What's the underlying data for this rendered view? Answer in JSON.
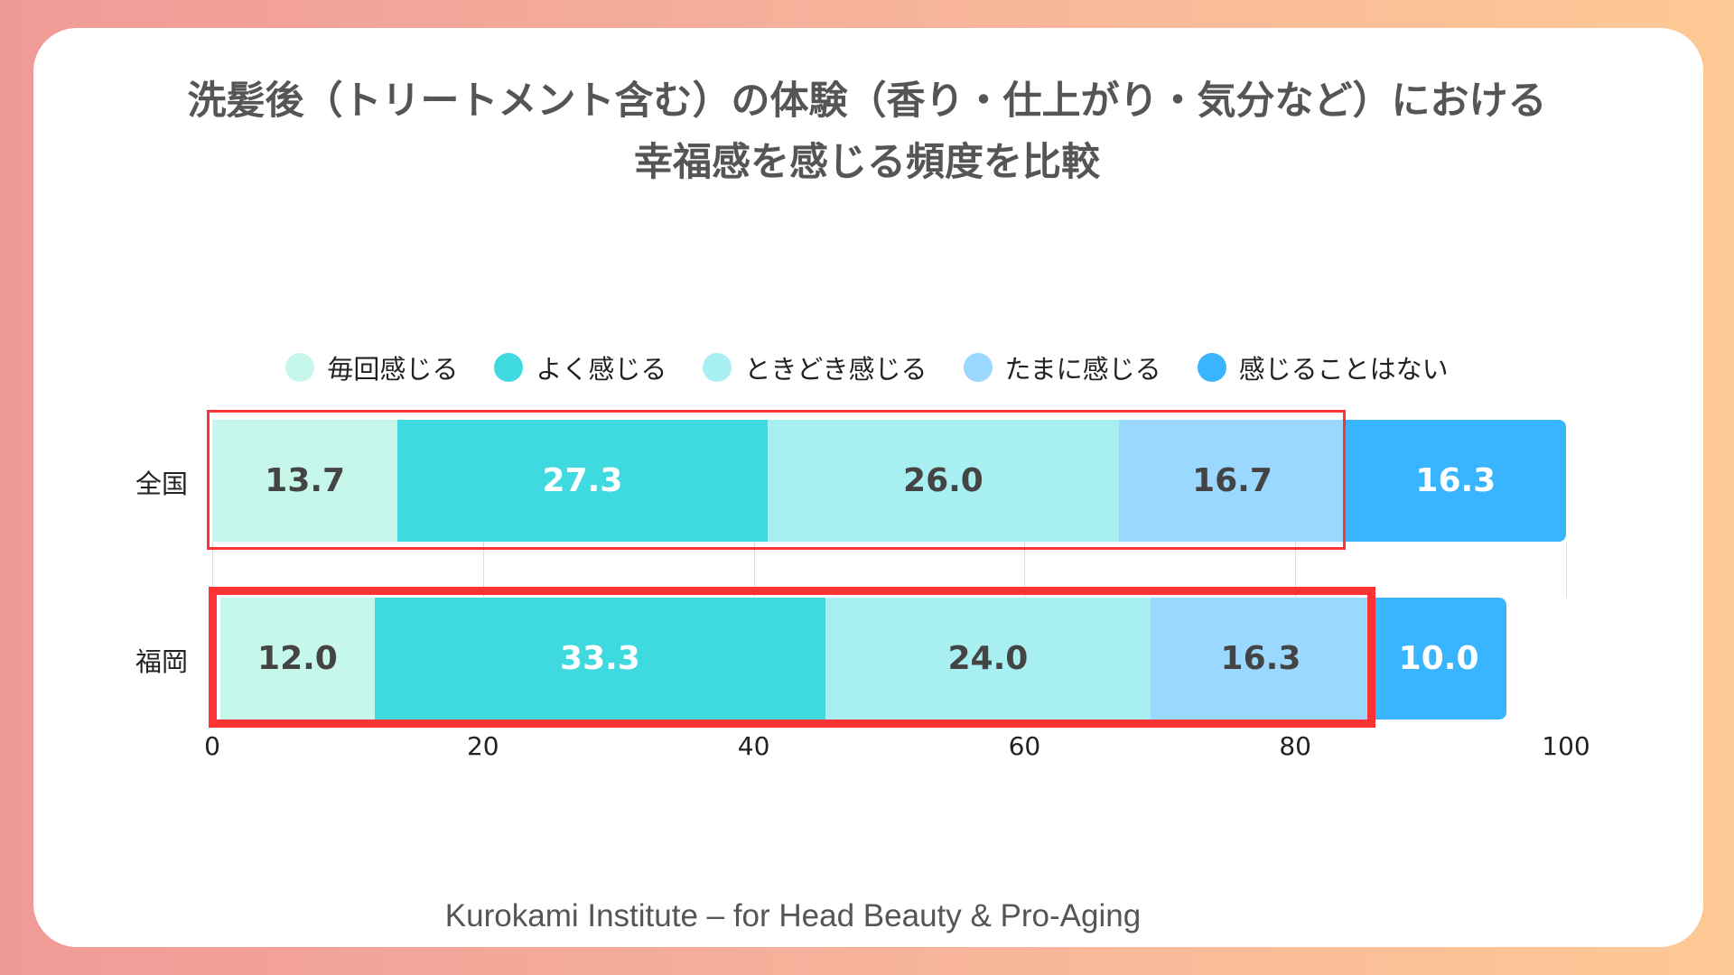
{
  "chart_data": {
    "type": "bar",
    "orientation": "horizontal-stacked",
    "title_line1": "洗髪後（トリートメント含む）の体験（香り・仕上がり・気分など）における",
    "title_line2": "幸福感を感じる頻度を比較",
    "categories": [
      "全国",
      "福岡"
    ],
    "series": [
      {
        "name": "毎回感じる",
        "color": "#c6f7ea",
        "label_color": "#444444",
        "values": [
          13.7,
          12.0
        ],
        "labels": [
          "13.7",
          "12.0"
        ]
      },
      {
        "name": "よく感じる",
        "color": "#3fd9e0",
        "label_color": "#ffffff",
        "values": [
          27.3,
          33.3
        ],
        "labels": [
          "27.3",
          "33.3"
        ]
      },
      {
        "name": "ときどき感じる",
        "color": "#a8eff2",
        "label_color": "#444444",
        "values": [
          26.0,
          24.0
        ],
        "labels": [
          "26.0",
          "24.0"
        ]
      },
      {
        "name": "たまに感じる",
        "color": "#9ad8ff",
        "label_color": "#444444",
        "values": [
          16.7,
          16.3
        ],
        "labels": [
          "16.7",
          "16.3"
        ]
      },
      {
        "name": "感じることはない",
        "color": "#39b4ff",
        "label_color": "#ffffff",
        "values": [
          16.3,
          10.0
        ],
        "labels": [
          "16.3",
          "10.0"
        ]
      }
    ],
    "xlim": [
      0,
      100
    ],
    "xticks": [
      "0",
      "20",
      "40",
      "60",
      "80",
      "100"
    ],
    "legend": "top",
    "highlight_color": "#ff3333"
  },
  "footer": "Kurokami Institute – for Head Beauty & Pro-Aging"
}
